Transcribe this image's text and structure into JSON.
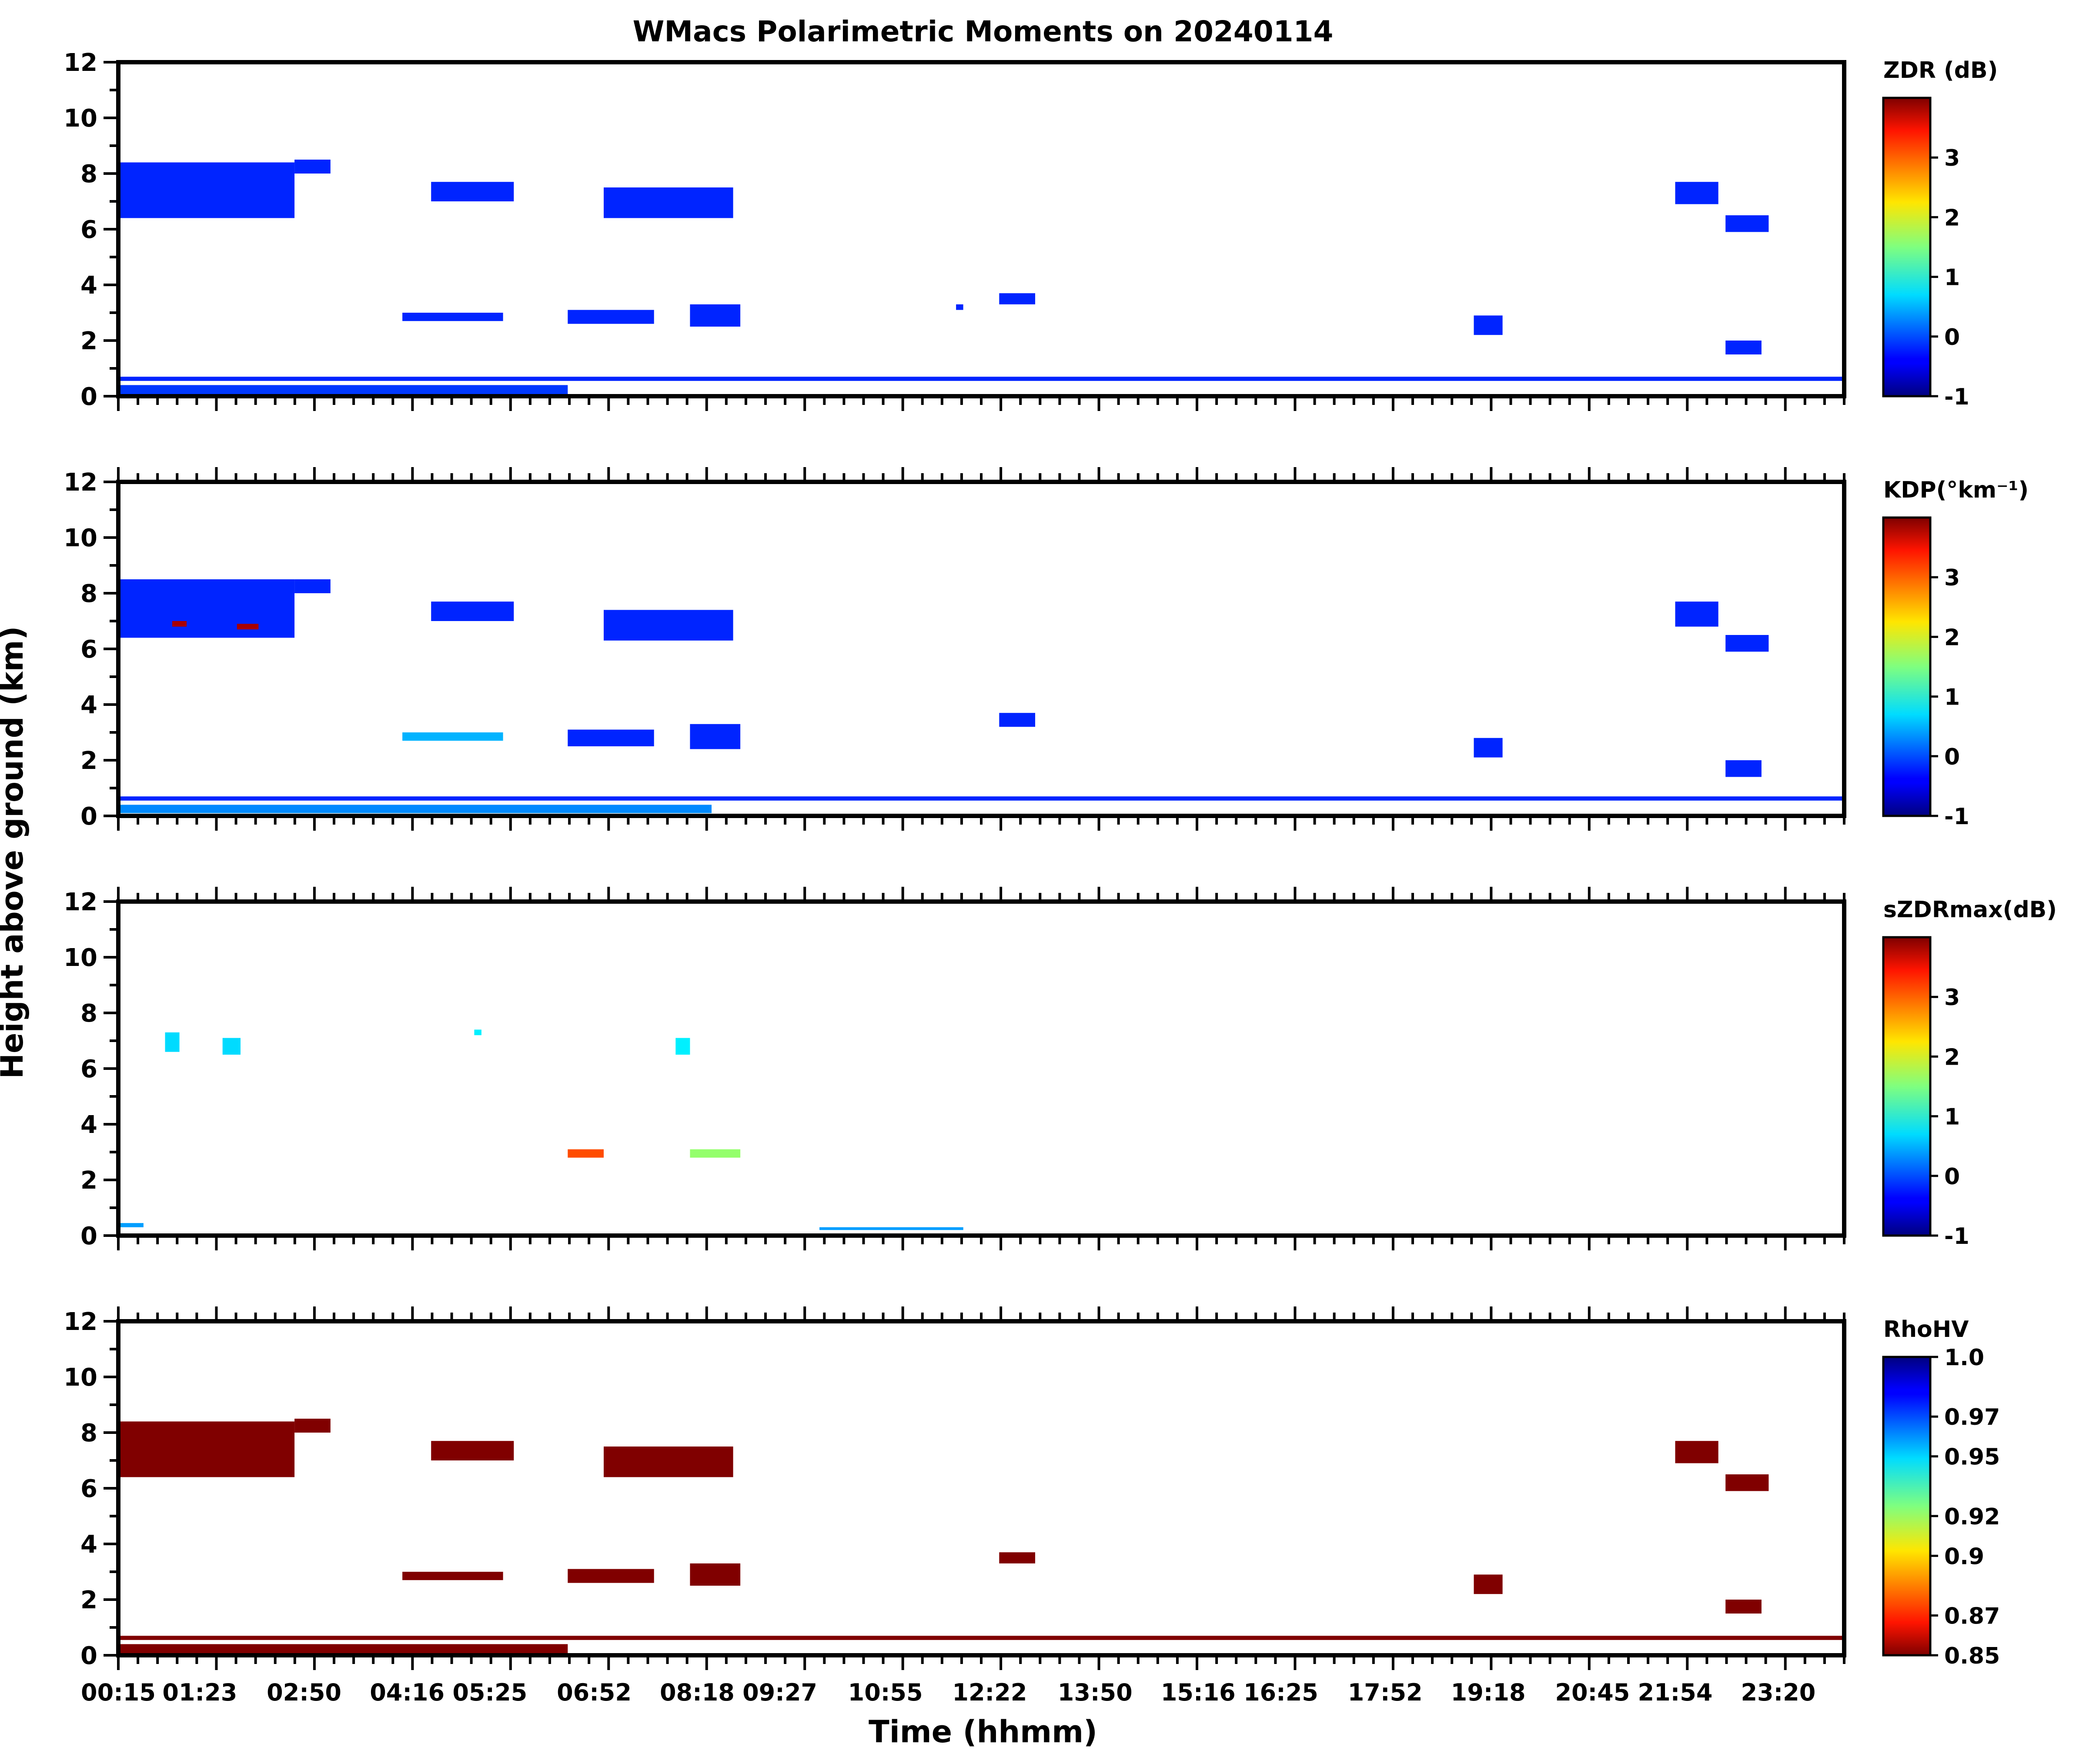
{
  "chart_data": {
    "type": "heatmap",
    "title": "WMacs Polarimetric Moments on 20240114",
    "xlabel": "Time (hhmm)",
    "ylabel": "Height above ground (km)",
    "x_unit": "hours",
    "xlim": [
      0.25,
      24.25
    ],
    "ylim": [
      0,
      12
    ],
    "yticks": [
      0,
      2,
      4,
      6,
      8,
      10,
      12
    ],
    "xticks": [
      {
        "t": 0.25,
        "label": "00:15"
      },
      {
        "t": 1.383,
        "label": "01:23"
      },
      {
        "t": 2.833,
        "label": "02:50"
      },
      {
        "t": 4.267,
        "label": "04:16"
      },
      {
        "t": 5.417,
        "label": "05:25"
      },
      {
        "t": 6.867,
        "label": "06:52"
      },
      {
        "t": 8.3,
        "label": "08:18"
      },
      {
        "t": 9.45,
        "label": "09:27"
      },
      {
        "t": 10.917,
        "label": "10:55"
      },
      {
        "t": 12.367,
        "label": "12:22"
      },
      {
        "t": 13.833,
        "label": "13:50"
      },
      {
        "t": 15.267,
        "label": "15:16"
      },
      {
        "t": 16.417,
        "label": "16:25"
      },
      {
        "t": 17.867,
        "label": "17:52"
      },
      {
        "t": 19.3,
        "label": "19:18"
      },
      {
        "t": 20.75,
        "label": "20:45"
      },
      {
        "t": 21.9,
        "label": "21:54"
      },
      {
        "t": 23.333,
        "label": "23:20"
      }
    ],
    "panels": [
      {
        "id": "zdr",
        "colorbar_label": "ZDR (dB)",
        "colormap": "jet",
        "vmin": -1,
        "vmax": 4,
        "cbar_ticks": [
          {
            "v": 3,
            "label": "3"
          },
          {
            "v": 2,
            "label": "2"
          },
          {
            "v": 1,
            "label": "1"
          },
          {
            "v": 0,
            "label": "0"
          },
          {
            "v": -1,
            "label": "-1"
          }
        ],
        "features": [
          {
            "t0": 0.25,
            "t1": 2.7,
            "h0": 6.4,
            "h1": 8.4,
            "v": -0.2
          },
          {
            "t0": 2.7,
            "t1": 3.2,
            "h0": 8.0,
            "h1": 8.5,
            "v": -0.2
          },
          {
            "t0": 4.6,
            "t1": 5.75,
            "h0": 7.0,
            "h1": 7.7,
            "v": -0.2
          },
          {
            "t0": 7.0,
            "t1": 8.8,
            "h0": 6.4,
            "h1": 7.5,
            "v": -0.2
          },
          {
            "t0": 6.5,
            "t1": 7.7,
            "h0": 2.6,
            "h1": 3.1,
            "v": -0.2
          },
          {
            "t0": 8.2,
            "t1": 8.9,
            "h0": 2.5,
            "h1": 3.3,
            "v": -0.2
          },
          {
            "t0": 4.2,
            "t1": 5.6,
            "h0": 2.7,
            "h1": 3.0,
            "v": -0.2
          },
          {
            "t0": 11.9,
            "t1": 12.0,
            "h0": 3.1,
            "h1": 3.3,
            "v": -0.2
          },
          {
            "t0": 12.5,
            "t1": 13.0,
            "h0": 3.3,
            "h1": 3.7,
            "v": -0.2
          },
          {
            "t0": 19.1,
            "t1": 19.5,
            "h0": 2.2,
            "h1": 2.9,
            "v": -0.2
          },
          {
            "t0": 21.9,
            "t1": 22.5,
            "h0": 6.9,
            "h1": 7.7,
            "v": -0.2
          },
          {
            "t0": 22.6,
            "t1": 23.2,
            "h0": 5.9,
            "h1": 6.5,
            "v": -0.2
          },
          {
            "t0": 22.6,
            "t1": 23.1,
            "h0": 1.5,
            "h1": 2.0,
            "v": -0.2
          },
          {
            "t0": 0.25,
            "t1": 24.25,
            "h0": 0.55,
            "h1": 0.7,
            "v": -0.2
          },
          {
            "t0": 0.25,
            "t1": 6.5,
            "h0": 0.05,
            "h1": 0.4,
            "v": -0.1
          }
        ]
      },
      {
        "id": "kdp",
        "colorbar_label": "KDP(°km⁻¹)",
        "colormap": "jet",
        "vmin": -1,
        "vmax": 4,
        "cbar_ticks": [
          {
            "v": 3,
            "label": "3"
          },
          {
            "v": 2,
            "label": "2"
          },
          {
            "v": 1,
            "label": "1"
          },
          {
            "v": 0,
            "label": "0"
          },
          {
            "v": -1,
            "label": "-1"
          }
        ],
        "features": [
          {
            "t0": 0.25,
            "t1": 2.7,
            "h0": 6.4,
            "h1": 8.5,
            "v": -0.2
          },
          {
            "t0": 2.7,
            "t1": 3.2,
            "h0": 8.0,
            "h1": 8.5,
            "v": -0.2
          },
          {
            "t0": 4.6,
            "t1": 5.75,
            "h0": 7.0,
            "h1": 7.7,
            "v": -0.2
          },
          {
            "t0": 7.0,
            "t1": 8.8,
            "h0": 6.3,
            "h1": 7.4,
            "v": -0.2
          },
          {
            "t0": 6.5,
            "t1": 7.7,
            "h0": 2.5,
            "h1": 3.1,
            "v": -0.2
          },
          {
            "t0": 8.2,
            "t1": 8.9,
            "h0": 2.4,
            "h1": 3.3,
            "v": -0.2
          },
          {
            "t0": 4.2,
            "t1": 5.6,
            "h0": 2.7,
            "h1": 3.0,
            "v": 0.5
          },
          {
            "t0": 12.5,
            "t1": 13.0,
            "h0": 3.2,
            "h1": 3.7,
            "v": -0.2
          },
          {
            "t0": 19.1,
            "t1": 19.5,
            "h0": 2.1,
            "h1": 2.8,
            "v": -0.2
          },
          {
            "t0": 21.9,
            "t1": 22.5,
            "h0": 6.8,
            "h1": 7.7,
            "v": -0.2
          },
          {
            "t0": 22.6,
            "t1": 23.2,
            "h0": 5.9,
            "h1": 6.5,
            "v": -0.2
          },
          {
            "t0": 22.6,
            "t1": 23.1,
            "h0": 1.4,
            "h1": 2.0,
            "v": -0.2
          },
          {
            "t0": 1.0,
            "t1": 1.2,
            "h0": 6.8,
            "h1": 7.0,
            "v": 3.8
          },
          {
            "t0": 1.9,
            "t1": 2.2,
            "h0": 6.7,
            "h1": 6.9,
            "v": 3.8
          },
          {
            "t0": 0.25,
            "t1": 24.25,
            "h0": 0.55,
            "h1": 0.7,
            "v": -0.2
          },
          {
            "t0": 0.25,
            "t1": 8.5,
            "h0": 0.1,
            "h1": 0.4,
            "v": 0.3
          }
        ]
      },
      {
        "id": "szdrmax",
        "colorbar_label": "sZDRmax(dB)",
        "colormap": "jet",
        "vmin": -1,
        "vmax": 4,
        "cbar_ticks": [
          {
            "v": 3,
            "label": "3"
          },
          {
            "v": 2,
            "label": "2"
          },
          {
            "v": 1,
            "label": "1"
          },
          {
            "v": 0,
            "label": "0"
          },
          {
            "v": -1,
            "label": "-1"
          }
        ],
        "features": [
          {
            "t0": 0.9,
            "t1": 1.1,
            "h0": 6.6,
            "h1": 7.3,
            "v": 0.7
          },
          {
            "t0": 1.7,
            "t1": 1.95,
            "h0": 6.5,
            "h1": 7.1,
            "v": 0.7
          },
          {
            "t0": 5.2,
            "t1": 5.3,
            "h0": 7.2,
            "h1": 7.4,
            "v": 0.8
          },
          {
            "t0": 8.0,
            "t1": 8.2,
            "h0": 6.5,
            "h1": 7.1,
            "v": 0.8
          },
          {
            "t0": 6.5,
            "t1": 7.0,
            "h0": 2.8,
            "h1": 3.1,
            "v": 3.0
          },
          {
            "t0": 8.2,
            "t1": 8.9,
            "h0": 2.8,
            "h1": 3.1,
            "v": 1.6
          },
          {
            "t0": 0.25,
            "t1": 0.6,
            "h0": 0.3,
            "h1": 0.45,
            "v": 0.4
          },
          {
            "t0": 10.0,
            "t1": 12.0,
            "h0": 0.2,
            "h1": 0.3,
            "v": 0.4
          }
        ]
      },
      {
        "id": "rhohv",
        "colorbar_label": "RhoHV",
        "colormap": "jet_r",
        "vmin": 0.85,
        "vmax": 1.0,
        "cbar_ticks": [
          {
            "v": 1.0,
            "label": "1.0"
          },
          {
            "v": 0.97,
            "label": "0.97"
          },
          {
            "v": 0.95,
            "label": "0.95"
          },
          {
            "v": 0.92,
            "label": "0.92"
          },
          {
            "v": 0.9,
            "label": "0.9"
          },
          {
            "v": 0.87,
            "label": "0.87"
          },
          {
            "v": 0.85,
            "label": "0.85"
          }
        ],
        "features": [
          {
            "t0": 0.25,
            "t1": 2.7,
            "h0": 6.4,
            "h1": 8.4,
            "v": 0.85
          },
          {
            "t0": 2.7,
            "t1": 3.2,
            "h0": 8.0,
            "h1": 8.5,
            "v": 0.85
          },
          {
            "t0": 4.6,
            "t1": 5.75,
            "h0": 7.0,
            "h1": 7.7,
            "v": 0.85
          },
          {
            "t0": 7.0,
            "t1": 8.8,
            "h0": 6.4,
            "h1": 7.5,
            "v": 0.85
          },
          {
            "t0": 6.5,
            "t1": 7.7,
            "h0": 2.6,
            "h1": 3.1,
            "v": 0.85
          },
          {
            "t0": 8.2,
            "t1": 8.9,
            "h0": 2.5,
            "h1": 3.3,
            "v": 0.85
          },
          {
            "t0": 4.2,
            "t1": 5.6,
            "h0": 2.7,
            "h1": 3.0,
            "v": 0.85
          },
          {
            "t0": 12.5,
            "t1": 13.0,
            "h0": 3.3,
            "h1": 3.7,
            "v": 0.85
          },
          {
            "t0": 19.1,
            "t1": 19.5,
            "h0": 2.2,
            "h1": 2.9,
            "v": 0.85
          },
          {
            "t0": 21.9,
            "t1": 22.5,
            "h0": 6.9,
            "h1": 7.7,
            "v": 0.85
          },
          {
            "t0": 22.6,
            "t1": 23.2,
            "h0": 5.9,
            "h1": 6.5,
            "v": 0.85
          },
          {
            "t0": 22.6,
            "t1": 23.1,
            "h0": 1.5,
            "h1": 2.0,
            "v": 0.85
          },
          {
            "t0": 0.25,
            "t1": 24.25,
            "h0": 0.55,
            "h1": 0.7,
            "v": 0.85
          },
          {
            "t0": 0.25,
            "t1": 6.5,
            "h0": 0.05,
            "h1": 0.4,
            "v": 0.85
          }
        ]
      }
    ]
  }
}
